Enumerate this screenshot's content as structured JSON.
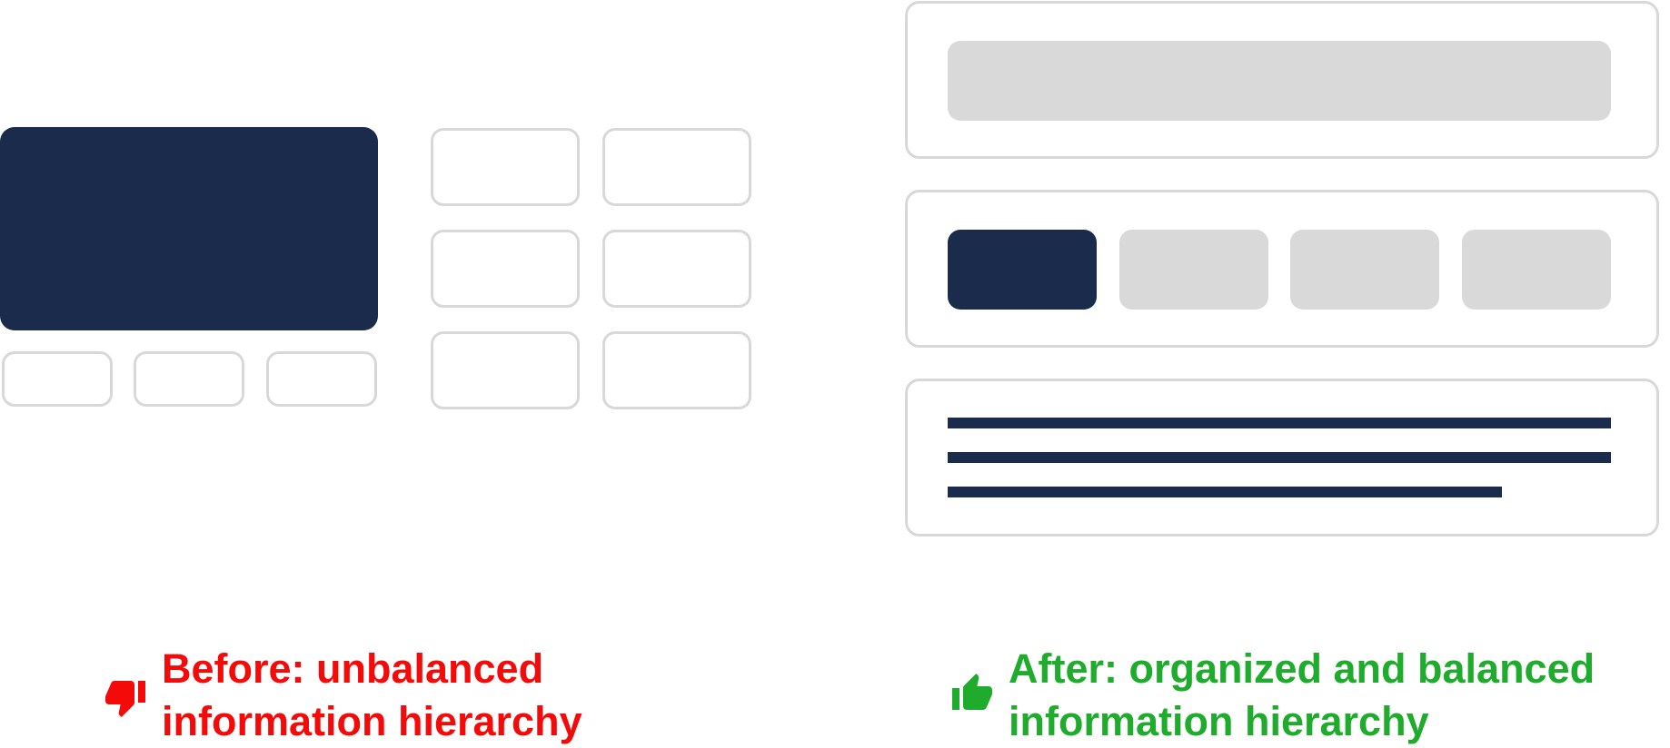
{
  "colors": {
    "dark_block": "#1a2b4b",
    "light_block": "#d9d9d9",
    "outline": "#d8d8d8",
    "before_red": "#f50a0a",
    "after_green": "#1fac2c"
  },
  "before": {
    "icon": "thumbs-down-icon",
    "caption_line1": "Before: unbalanced",
    "caption_line2": "information hierarchy"
  },
  "after": {
    "icon": "thumbs-up-icon",
    "caption_line1": "After: organized and balanced",
    "caption_line2": "information hierarchy"
  }
}
